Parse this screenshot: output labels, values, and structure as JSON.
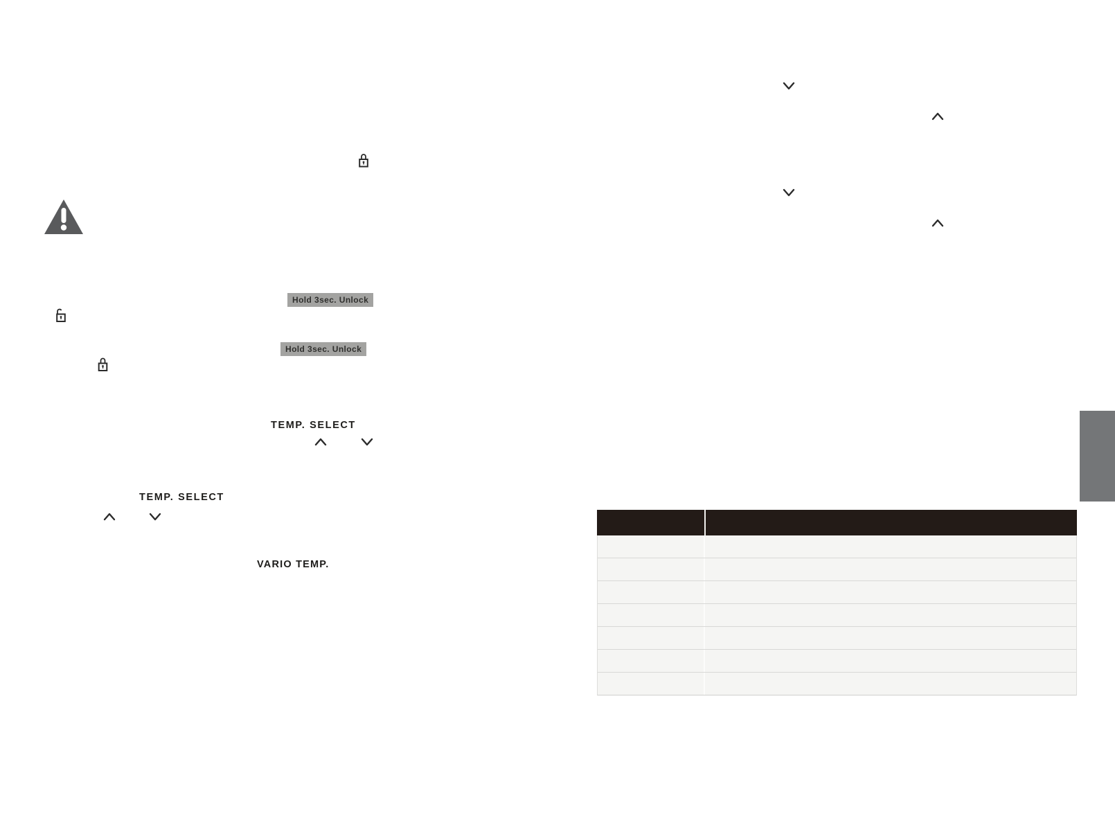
{
  "labels": {
    "unlock_badge_1": "Hold 3sec. Unlock",
    "unlock_badge_2": "Hold 3sec. Unlock",
    "temp_select_1": "TEMP. SELECT",
    "temp_select_2": "TEMP. SELECT",
    "vario_temp": "VARIO TEMP."
  },
  "icons": {
    "chevron_up": "∧",
    "chevron_down": "∨",
    "lock_closed": "closed-padlock",
    "lock_open": "open-padlock",
    "warning": "warning-triangle-exclamation"
  },
  "colors": {
    "table_header_bg": "#231b17",
    "table_row_bg": "#f5f5f3",
    "table_border": "#d8d8d6",
    "side_tab_bg": "#747678",
    "badge_bg": "#a3a3a1",
    "badge_text": "#2f2f2d",
    "icon_stroke": "#2b2b2b",
    "warning_fill": "#595a5c"
  },
  "table": {
    "header": [
      "",
      ""
    ],
    "rows": [
      [
        "",
        ""
      ],
      [
        "",
        ""
      ],
      [
        "",
        ""
      ],
      [
        "",
        ""
      ],
      [
        "",
        ""
      ],
      [
        "",
        ""
      ],
      [
        "",
        ""
      ]
    ]
  }
}
